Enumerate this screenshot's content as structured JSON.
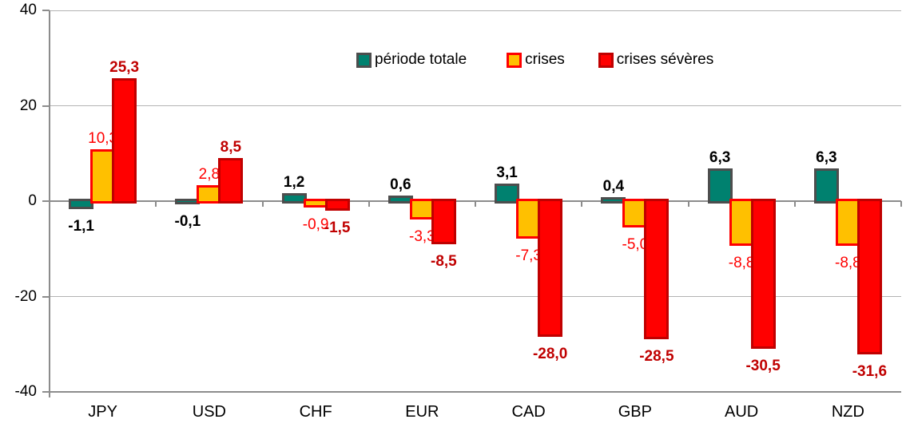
{
  "chart_data": {
    "type": "bar",
    "title": "",
    "xlabel": "",
    "ylabel": "",
    "categories": [
      "JPY",
      "USD",
      "CHF",
      "EUR",
      "CAD",
      "GBP",
      "AUD",
      "NZD"
    ],
    "series": [
      {
        "name": "période totale",
        "fill_color": "#00816F",
        "border_color": "#4D4D4D",
        "label_color": "#000000",
        "label_bold": true,
        "values": [
          -1.1,
          -0.1,
          1.2,
          0.6,
          3.1,
          0.4,
          6.3,
          6.3
        ],
        "value_labels": [
          "-1,1",
          "-0,1",
          "1,2",
          "0,6",
          "3,1",
          "0,4",
          "6,3",
          "6,3"
        ]
      },
      {
        "name": "crises",
        "fill_color": "#FFC000",
        "border_color": "#FF0000",
        "label_color": "#FF0000",
        "label_bold": false,
        "values": [
          10.3,
          2.8,
          -0.9,
          -3.3,
          -7.3,
          -5.0,
          -8.8,
          -8.8
        ],
        "value_labels": [
          "10,3",
          "2,8",
          "-0,9",
          "-3,3",
          "-7,3",
          "-5,0",
          "-8,8",
          "-8,8"
        ]
      },
      {
        "name": "crises sévères",
        "fill_color": "#FF0000",
        "border_color": "#C00000",
        "label_color": "#C00000",
        "label_bold": true,
        "values": [
          25.3,
          8.5,
          -1.5,
          -8.5,
          -28.0,
          -28.5,
          -30.5,
          -31.6
        ],
        "value_labels": [
          "25,3",
          "8,5",
          "-1,5",
          "-8,5",
          "-28,0",
          "-28,5",
          "-30,5",
          "-31,6"
        ]
      }
    ],
    "y_axis": {
      "min": -40,
      "max": 40,
      "tick_values": [
        40,
        20,
        0,
        -20,
        -40
      ],
      "tick_labels": [
        "40",
        "20",
        "0",
        "-20",
        "-40"
      ]
    },
    "legend": {
      "position": "top-center",
      "entries": [
        "période totale",
        "crises",
        "crises sévères"
      ]
    },
    "grid": true,
    "background": "#FFFFFF"
  }
}
